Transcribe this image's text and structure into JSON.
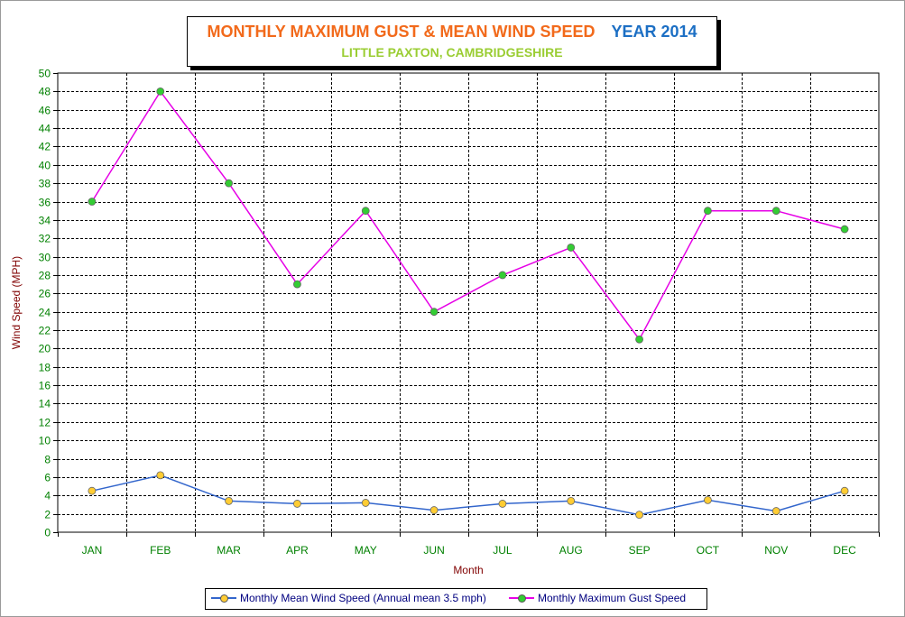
{
  "title": {
    "main": "MONTHLY MAXIMUM GUST & MEAN WIND SPEED",
    "year": "YEAR 2014",
    "subtitle": "LITTLE PAXTON, CAMBRIDGESHIRE"
  },
  "colors": {
    "title_main": "#f26a1b",
    "title_year": "#1c6fc4",
    "subtitle": "#9acd32",
    "axis_label": "#800000",
    "tick_label": "#008000",
    "gust_line": "#e600e6",
    "gust_marker": "#33cc33",
    "mean_line": "#3366cc",
    "mean_marker": "#ffcc33"
  },
  "chart_data": {
    "type": "line",
    "title": "MONTHLY MAXIMUM GUST & MEAN WIND SPEED",
    "subtitle": "LITTLE PAXTON, CAMBRIDGESHIRE",
    "xlabel": "Month",
    "ylabel": "Wind Speed (MPH)",
    "ylim": [
      0,
      50
    ],
    "ytick_step": 2,
    "grid": true,
    "legend_position": "bottom",
    "categories": [
      "JAN",
      "FEB",
      "MAR",
      "APR",
      "MAY",
      "JUN",
      "JUL",
      "AUG",
      "SEP",
      "OCT",
      "NOV",
      "DEC"
    ],
    "series": [
      {
        "name": "Monthly Mean Wind Speed (Annual mean 3.5 mph)",
        "values": [
          4.5,
          6.2,
          3.4,
          3.1,
          3.2,
          2.4,
          3.1,
          3.4,
          1.9,
          3.5,
          2.3,
          4.5
        ]
      },
      {
        "name": "Monthly Maximum Gust Speed",
        "values": [
          36,
          48,
          38,
          27,
          35,
          24,
          28,
          31,
          21,
          35,
          35,
          33
        ]
      }
    ]
  }
}
